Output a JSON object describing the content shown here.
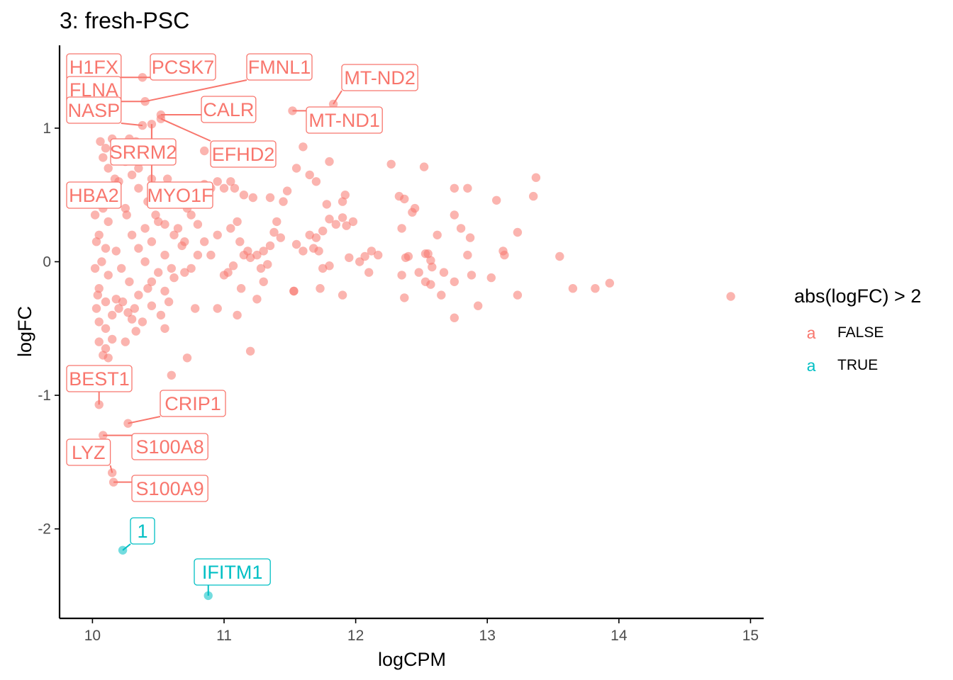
{
  "chart_data": {
    "type": "scatter",
    "title": "3: fresh-PSC",
    "xlabel": "logCPM",
    "ylabel": "logFC",
    "xlim": [
      9.75,
      15.1
    ],
    "ylim": [
      -2.67,
      1.62
    ],
    "x_ticks": [
      10,
      11,
      12,
      13,
      14,
      15
    ],
    "y_ticks": [
      -2,
      -1,
      0,
      1
    ],
    "grid": false,
    "legend": {
      "title": "abs(logFC) > 2",
      "position": "right",
      "entries": [
        {
          "label": "FALSE",
          "color": "#F8766D"
        },
        {
          "label": "TRUE",
          "color": "#00BFC4"
        }
      ]
    },
    "colors": {
      "FALSE": "#F8766D",
      "TRUE": "#00BFC4"
    },
    "series": [
      {
        "name": "FALSE",
        "points": [
          [
            10.38,
            1.38
          ],
          [
            10.4,
            1.2
          ],
          [
            10.52,
            1.1
          ],
          [
            10.52,
            1.07
          ],
          [
            11.83,
            1.18
          ],
          [
            11.52,
            1.13
          ],
          [
            10.38,
            1.02
          ],
          [
            10.45,
            1.03
          ],
          [
            10.85,
            0.83
          ],
          [
            11.6,
            0.86
          ],
          [
            11.55,
            0.7
          ],
          [
            11.65,
            0.65
          ],
          [
            11.7,
            0.6
          ],
          [
            11.8,
            0.75
          ],
          [
            12.27,
            0.73
          ],
          [
            12.52,
            0.71
          ],
          [
            12.33,
            0.49
          ],
          [
            12.37,
            0.47
          ],
          [
            12.75,
            0.55
          ],
          [
            12.85,
            0.55
          ],
          [
            13.07,
            0.46
          ],
          [
            13.37,
            0.63
          ],
          [
            13.35,
            0.49
          ],
          [
            12.43,
            0.37
          ],
          [
            12.45,
            0.4
          ],
          [
            12.75,
            0.35
          ],
          [
            12.62,
            0.2
          ],
          [
            12.8,
            0.25
          ],
          [
            12.87,
            0.18
          ],
          [
            13.23,
            0.22
          ],
          [
            13.12,
            0.08
          ],
          [
            13.13,
            0.05
          ],
          [
            13.55,
            0.04
          ],
          [
            12.85,
            0.05
          ],
          [
            12.53,
            0.06
          ],
          [
            12.55,
            0.06
          ],
          [
            12.57,
            0.01
          ],
          [
            12.4,
            0.04
          ],
          [
            12.38,
            0.03
          ],
          [
            12.35,
            0.25
          ],
          [
            12.12,
            0.08
          ],
          [
            12.17,
            0.05
          ],
          [
            12.07,
            0.04
          ],
          [
            11.98,
            0.3
          ],
          [
            11.93,
            0.27
          ],
          [
            11.9,
            0.33
          ],
          [
            11.85,
            0.28
          ],
          [
            11.8,
            0.32
          ],
          [
            11.75,
            0.23
          ],
          [
            11.7,
            0.18
          ],
          [
            11.78,
            0.43
          ],
          [
            11.65,
            0.2
          ],
          [
            11.68,
            0.1
          ],
          [
            11.72,
            0.08
          ],
          [
            11.55,
            0.13
          ],
          [
            11.6,
            0.08
          ],
          [
            11.9,
            0.45
          ],
          [
            11.92,
            0.5
          ],
          [
            11.75,
            -0.05
          ],
          [
            11.8,
            -0.03
          ],
          [
            11.95,
            0.03
          ],
          [
            12.03,
            0.0
          ],
          [
            12.1,
            -0.08
          ],
          [
            11.9,
            -0.25
          ],
          [
            11.73,
            -0.2
          ],
          [
            11.53,
            -0.22
          ],
          [
            11.4,
            0.3
          ],
          [
            11.38,
            0.22
          ],
          [
            11.43,
            0.18
          ],
          [
            11.35,
            0.12
          ],
          [
            11.3,
            0.08
          ],
          [
            11.25,
            0.05
          ],
          [
            11.33,
            -0.02
          ],
          [
            11.28,
            -0.05
          ],
          [
            11.22,
            0.48
          ],
          [
            11.15,
            0.5
          ],
          [
            11.45,
            0.45
          ],
          [
            11.48,
            0.53
          ],
          [
            11.35,
            0.48
          ],
          [
            11.08,
            0.55
          ],
          [
            11.05,
            0.6
          ],
          [
            11.0,
            0.55
          ],
          [
            10.95,
            0.6
          ],
          [
            10.9,
            0.55
          ],
          [
            10.85,
            0.58
          ],
          [
            10.82,
            0.52
          ],
          [
            10.78,
            0.48
          ],
          [
            11.1,
            0.3
          ],
          [
            11.05,
            0.25
          ],
          [
            11.12,
            0.15
          ],
          [
            11.18,
            0.08
          ],
          [
            11.15,
            0.05
          ],
          [
            11.2,
            0.03
          ],
          [
            11.07,
            -0.03
          ],
          [
            11.03,
            -0.08
          ],
          [
            11.0,
            -0.1
          ],
          [
            11.13,
            -0.2
          ],
          [
            11.3,
            -0.15
          ],
          [
            11.53,
            -0.22
          ],
          [
            11.25,
            -0.28
          ],
          [
            11.1,
            -0.4
          ],
          [
            10.95,
            -0.35
          ],
          [
            11.2,
            -0.67
          ],
          [
            12.37,
            -0.27
          ],
          [
            12.75,
            -0.15
          ],
          [
            12.75,
            -0.42
          ],
          [
            12.65,
            -0.25
          ],
          [
            12.53,
            -0.15
          ],
          [
            12.57,
            -0.17
          ],
          [
            12.35,
            -0.1
          ],
          [
            12.48,
            -0.08
          ],
          [
            12.58,
            -0.04
          ],
          [
            12.67,
            -0.08
          ],
          [
            12.88,
            -0.1
          ],
          [
            12.93,
            -0.33
          ],
          [
            13.03,
            -0.12
          ],
          [
            13.23,
            -0.25
          ],
          [
            13.65,
            -0.2
          ],
          [
            13.82,
            -0.2
          ],
          [
            13.93,
            -0.16
          ],
          [
            14.85,
            -0.26
          ],
          [
            10.78,
            -0.35
          ],
          [
            10.72,
            -0.72
          ],
          [
            10.55,
            -0.5
          ],
          [
            10.6,
            -0.85
          ],
          [
            10.3,
            -0.43
          ],
          [
            10.25,
            -0.6
          ],
          [
            10.05,
            -1.07
          ],
          [
            10.27,
            -1.21
          ],
          [
            10.08,
            -1.3
          ],
          [
            10.15,
            -1.58
          ],
          [
            10.16,
            -1.65
          ],
          [
            10.12,
            -0.72
          ],
          [
            10.08,
            -0.7
          ],
          [
            10.1,
            -0.65
          ],
          [
            10.05,
            -0.6
          ],
          [
            10.15,
            -0.58
          ],
          [
            10.1,
            -0.5
          ],
          [
            10.05,
            -0.45
          ],
          [
            10.2,
            -0.35
          ],
          [
            10.18,
            -0.28
          ],
          [
            10.23,
            -0.3
          ],
          [
            10.35,
            -0.25
          ],
          [
            10.45,
            -0.15
          ],
          [
            10.55,
            -0.22
          ],
          [
            10.62,
            -0.12
          ],
          [
            10.7,
            -0.08
          ],
          [
            10.75,
            -0.05
          ],
          [
            10.8,
            0.05
          ],
          [
            10.68,
            0.12
          ],
          [
            10.62,
            0.2
          ],
          [
            10.55,
            0.28
          ],
          [
            10.48,
            0.35
          ],
          [
            10.42,
            0.45
          ],
          [
            10.35,
            0.55
          ],
          [
            10.3,
            0.65
          ],
          [
            10.25,
            0.75
          ],
          [
            10.2,
            0.85
          ],
          [
            10.15,
            0.92
          ],
          [
            10.22,
            0.88
          ],
          [
            10.28,
            0.92
          ],
          [
            10.33,
            0.9
          ],
          [
            10.05,
            0.5
          ],
          [
            10.08,
            0.4
          ],
          [
            10.12,
            0.3
          ],
          [
            10.05,
            0.2
          ],
          [
            10.1,
            0.1
          ],
          [
            10.07,
            0.0
          ],
          [
            10.12,
            -0.1
          ],
          [
            10.05,
            -0.2
          ],
          [
            10.1,
            -0.3
          ],
          [
            10.15,
            -0.4
          ],
          [
            10.2,
            0.6
          ],
          [
            10.25,
            0.4
          ],
          [
            10.3,
            0.2
          ],
          [
            10.35,
            0.1
          ],
          [
            10.4,
            0.0
          ],
          [
            10.45,
            0.15
          ],
          [
            10.5,
            0.3
          ],
          [
            10.55,
            0.05
          ],
          [
            10.6,
            -0.05
          ],
          [
            10.65,
            0.25
          ],
          [
            10.7,
            0.15
          ],
          [
            10.75,
            0.35
          ],
          [
            10.8,
            0.28
          ],
          [
            10.85,
            0.15
          ],
          [
            10.9,
            0.05
          ],
          [
            10.95,
            0.2
          ],
          [
            10.58,
            -0.3
          ],
          [
            10.52,
            -0.4
          ],
          [
            10.45,
            -0.33
          ],
          [
            10.38,
            -0.45
          ],
          [
            10.33,
            -0.52
          ],
          [
            10.28,
            -0.15
          ],
          [
            10.22,
            -0.05
          ],
          [
            10.18,
            0.08
          ],
          [
            10.14,
            0.45
          ],
          [
            10.17,
            0.62
          ],
          [
            10.12,
            0.7
          ],
          [
            10.08,
            0.78
          ],
          [
            10.1,
            0.85
          ],
          [
            10.06,
            0.9
          ],
          [
            10.04,
            0.55
          ],
          [
            10.02,
            0.35
          ],
          [
            10.03,
            0.15
          ],
          [
            10.02,
            -0.05
          ],
          [
            10.04,
            -0.25
          ],
          [
            10.03,
            -0.35
          ],
          [
            10.35,
            0.7
          ],
          [
            10.45,
            0.62
          ],
          [
            10.5,
            0.55
          ],
          [
            10.57,
            0.62
          ],
          [
            10.62,
            0.5
          ],
          [
            10.68,
            0.45
          ],
          [
            10.72,
            0.4
          ],
          [
            10.5,
            -0.08
          ],
          [
            10.42,
            -0.2
          ],
          [
            10.48,
            0.45
          ],
          [
            10.4,
            0.25
          ],
          [
            10.26,
            0.35
          ],
          [
            10.32,
            -0.35
          ],
          [
            10.27,
            -0.38
          ]
        ]
      },
      {
        "name": "TRUE",
        "points": [
          [
            10.23,
            -2.16
          ],
          [
            10.88,
            -2.5
          ]
        ]
      }
    ],
    "labels": [
      {
        "text": "H1FX",
        "x": 10.38,
        "y": 1.38,
        "group": "FALSE"
      },
      {
        "text": "PCSK7",
        "x": 10.38,
        "y": 1.38,
        "group": "FALSE"
      },
      {
        "text": "FMNL1",
        "x": 10.4,
        "y": 1.2,
        "group": "FALSE"
      },
      {
        "text": "FLNA",
        "x": 10.4,
        "y": 1.2,
        "group": "FALSE"
      },
      {
        "text": "MT-ND2",
        "x": 11.83,
        "y": 1.18,
        "group": "FALSE"
      },
      {
        "text": "NASP",
        "x": 10.38,
        "y": 1.02,
        "group": "FALSE"
      },
      {
        "text": "CALR",
        "x": 10.52,
        "y": 1.1,
        "group": "FALSE"
      },
      {
        "text": "MT-ND1",
        "x": 11.52,
        "y": 1.13,
        "group": "FALSE"
      },
      {
        "text": "SRRM2",
        "x": 10.45,
        "y": 1.03,
        "group": "FALSE"
      },
      {
        "text": "EFHD2",
        "x": 10.52,
        "y": 1.07,
        "group": "FALSE"
      },
      {
        "text": "HBA2",
        "x": 10.15,
        "y": 0.62,
        "group": "FALSE"
      },
      {
        "text": "MYO1F",
        "x": 10.45,
        "y": 1.03,
        "group": "FALSE"
      },
      {
        "text": "BEST1",
        "x": 10.05,
        "y": -1.07,
        "group": "FALSE"
      },
      {
        "text": "CRIP1",
        "x": 10.27,
        "y": -1.21,
        "group": "FALSE"
      },
      {
        "text": "S100A8",
        "x": 10.08,
        "y": -1.3,
        "group": "FALSE"
      },
      {
        "text": "LYZ",
        "x": 10.15,
        "y": -1.58,
        "group": "FALSE"
      },
      {
        "text": "S100A9",
        "x": 10.16,
        "y": -1.65,
        "group": "FALSE"
      },
      {
        "text": "1",
        "x": 10.23,
        "y": -2.16,
        "group": "TRUE"
      },
      {
        "text": "IFITM1",
        "x": 10.88,
        "y": -2.5,
        "group": "TRUE"
      }
    ]
  }
}
